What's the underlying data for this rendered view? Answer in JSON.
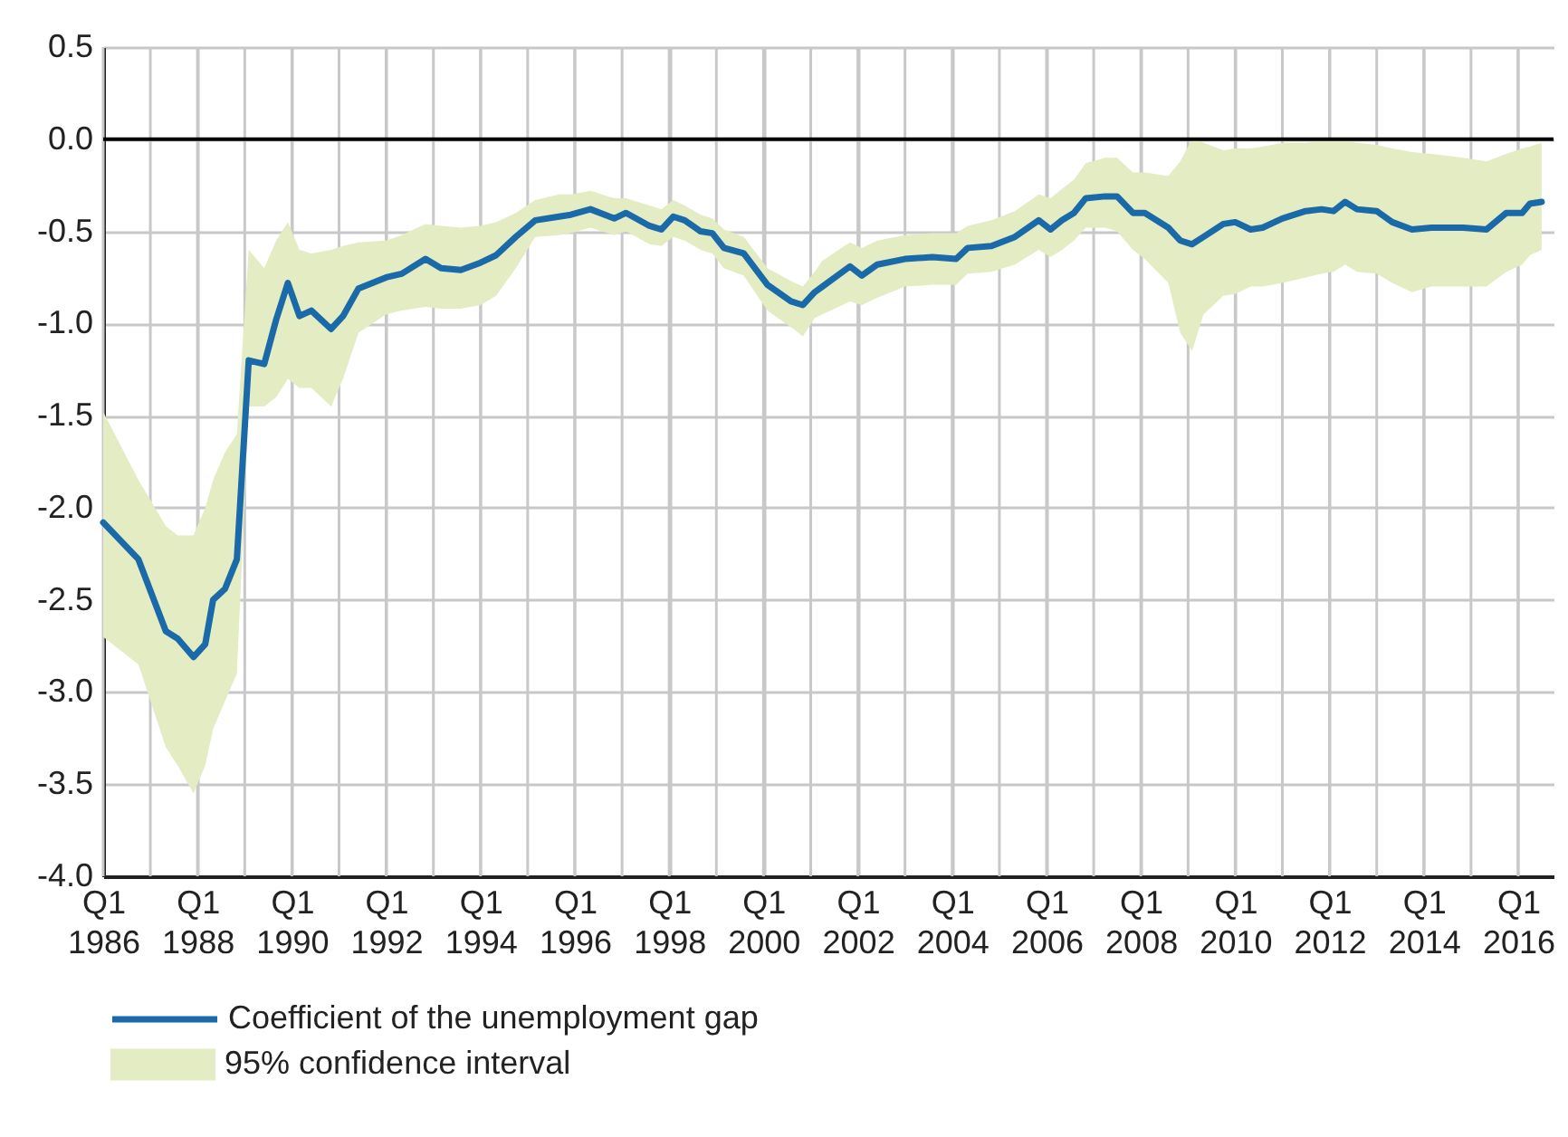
{
  "chart_data": {
    "type": "line",
    "x": [
      "1986-01",
      "1986-10",
      "1987-05",
      "1987-08",
      "1987-12",
      "1988-03",
      "1988-05",
      "1988-08",
      "1988-11",
      "1989-02",
      "1989-06",
      "1989-09",
      "1989-12",
      "1990-03",
      "1990-06",
      "1990-11",
      "1991-02",
      "1991-06",
      "1992-01",
      "1992-05",
      "1992-11",
      "1993-03",
      "1993-08",
      "1994-01",
      "1994-05",
      "1994-10",
      "1995-03",
      "1995-09",
      "1995-12",
      "1996-05",
      "1996-11",
      "1997-02",
      "1997-08",
      "1997-11",
      "1998-02",
      "1998-05",
      "1998-09",
      "1998-12",
      "1999-03",
      "1999-08",
      "2000-02",
      "2000-08",
      "2000-11",
      "2001-02",
      "2001-04",
      "2001-11",
      "2002-02",
      "2002-06",
      "2003-01",
      "2003-08",
      "2004-02",
      "2004-05",
      "2004-11",
      "2005-05",
      "2005-11",
      "2006-02",
      "2006-05",
      "2006-08",
      "2006-11",
      "2007-04",
      "2007-07",
      "2007-11",
      "2008-02",
      "2008-08",
      "2008-11",
      "2009-02",
      "2009-05",
      "2009-10",
      "2010-01",
      "2010-05",
      "2010-08",
      "2011-01",
      "2011-07",
      "2011-11",
      "2012-02",
      "2012-05",
      "2012-08",
      "2013-01",
      "2013-05",
      "2013-10",
      "2014-03",
      "2014-11",
      "2015-05",
      "2015-10",
      "2016-02",
      "2016-04",
      "2016-07"
    ],
    "series": [
      {
        "name": "Coefficient of the unemployment gap",
        "color": "#1a69a8",
        "lower": [
          -2.7,
          -2.85,
          -3.3,
          -3.4,
          -3.55,
          -3.4,
          -3.2,
          -3.05,
          -2.9,
          -1.45,
          -1.45,
          -1.4,
          -1.3,
          -1.35,
          -1.35,
          -1.45,
          -1.3,
          -1.05,
          -0.95,
          -0.93,
          -0.91,
          -0.92,
          -0.92,
          -0.9,
          -0.85,
          -0.7,
          -0.53,
          -0.52,
          -0.51,
          -0.48,
          -0.52,
          -0.5,
          -0.57,
          -0.58,
          -0.53,
          -0.55,
          -0.6,
          -0.62,
          -0.7,
          -0.74,
          -0.93,
          -1.02,
          -1.07,
          -0.97,
          -0.95,
          -0.88,
          -0.9,
          -0.86,
          -0.8,
          -0.79,
          -0.79,
          -0.73,
          -0.72,
          -0.68,
          -0.6,
          -0.64,
          -0.6,
          -0.55,
          -0.48,
          -0.48,
          -0.5,
          -0.6,
          -0.65,
          -0.78,
          -1.05,
          -1.15,
          -0.95,
          -0.85,
          -0.84,
          -0.8,
          -0.8,
          -0.78,
          -0.75,
          -0.73,
          -0.72,
          -0.68,
          -0.72,
          -0.73,
          -0.78,
          -0.83,
          -0.8,
          -0.8,
          -0.8,
          -0.72,
          -0.68,
          -0.63,
          -0.6
        ],
        "upper": [
          -1.48,
          -1.85,
          -2.1,
          -2.15,
          -2.15,
          -2.0,
          -1.85,
          -1.7,
          -1.6,
          -0.6,
          -0.7,
          -0.55,
          -0.45,
          -0.6,
          -0.62,
          -0.6,
          -0.58,
          -0.56,
          -0.55,
          -0.52,
          -0.46,
          -0.47,
          -0.48,
          -0.47,
          -0.45,
          -0.4,
          -0.33,
          -0.3,
          -0.3,
          -0.28,
          -0.32,
          -0.32,
          -0.36,
          -0.38,
          -0.33,
          -0.36,
          -0.41,
          -0.43,
          -0.49,
          -0.53,
          -0.7,
          -0.77,
          -0.8,
          -0.72,
          -0.66,
          -0.56,
          -0.59,
          -0.55,
          -0.52,
          -0.51,
          -0.51,
          -0.47,
          -0.44,
          -0.39,
          -0.3,
          -0.32,
          -0.27,
          -0.22,
          -0.13,
          -0.1,
          -0.1,
          -0.18,
          -0.18,
          -0.2,
          -0.12,
          0.0,
          -0.02,
          -0.06,
          -0.05,
          -0.05,
          -0.04,
          -0.02,
          -0.02,
          -0.01,
          -0.01,
          -0.01,
          -0.02,
          -0.03,
          -0.05,
          -0.07,
          -0.08,
          -0.1,
          -0.12,
          -0.08,
          -0.05,
          -0.04,
          -0.02
        ],
        "values": [
          -2.08,
          -2.28,
          -2.67,
          -2.71,
          -2.81,
          -2.74,
          -2.5,
          -2.44,
          -2.28,
          -1.2,
          -1.22,
          -0.98,
          -0.78,
          -0.96,
          -0.93,
          -1.03,
          -0.96,
          -0.81,
          -0.75,
          -0.73,
          -0.65,
          -0.7,
          -0.71,
          -0.67,
          -0.63,
          -0.53,
          -0.44,
          -0.42,
          -0.41,
          -0.38,
          -0.43,
          -0.4,
          -0.47,
          -0.49,
          -0.42,
          -0.44,
          -0.5,
          -0.51,
          -0.59,
          -0.62,
          -0.79,
          -0.88,
          -0.9,
          -0.83,
          -0.8,
          -0.69,
          -0.74,
          -0.68,
          -0.65,
          -0.64,
          -0.65,
          -0.59,
          -0.58,
          -0.53,
          -0.44,
          -0.49,
          -0.44,
          -0.4,
          -0.32,
          -0.31,
          -0.31,
          -0.4,
          -0.4,
          -0.48,
          -0.55,
          -0.57,
          -0.53,
          -0.46,
          -0.45,
          -0.49,
          -0.48,
          -0.43,
          -0.39,
          -0.38,
          -0.39,
          -0.34,
          -0.38,
          -0.39,
          -0.45,
          -0.49,
          -0.48,
          -0.48,
          -0.49,
          -0.4,
          -0.4,
          -0.35,
          -0.34
        ]
      }
    ],
    "xlim": [
      "1986-01",
      "2016-10"
    ],
    "xticks": [
      {
        "value": "1986",
        "label": "Q1\n1986"
      },
      {
        "value": "1987",
        "label": null
      },
      {
        "value": "1988",
        "label": "Q1\n1988"
      },
      {
        "value": "1989",
        "label": null
      },
      {
        "value": "1990",
        "label": "Q1\n1990"
      },
      {
        "value": "1991",
        "label": null
      },
      {
        "value": "1992",
        "label": "Q1\n1992"
      },
      {
        "value": "1993",
        "label": null
      },
      {
        "value": "1994",
        "label": "Q1\n1994"
      },
      {
        "value": "1995",
        "label": null
      },
      {
        "value": "1996",
        "label": "Q1\n1996"
      },
      {
        "value": "1997",
        "label": null
      },
      {
        "value": "1998",
        "label": "Q1\n1998"
      },
      {
        "value": "1999",
        "label": null
      },
      {
        "value": "2000",
        "label": "Q1\n2000"
      },
      {
        "value": "2001",
        "label": null
      },
      {
        "value": "2002",
        "label": "Q1\n2002"
      },
      {
        "value": "2003",
        "label": null
      },
      {
        "value": "2004",
        "label": "Q1\n2004"
      },
      {
        "value": "2005",
        "label": null
      },
      {
        "value": "2006",
        "label": "Q1\n2006"
      },
      {
        "value": "2007",
        "label": null
      },
      {
        "value": "2008",
        "label": "Q1\n2008"
      },
      {
        "value": "2009",
        "label": null
      },
      {
        "value": "2010",
        "label": "Q1\n2010"
      },
      {
        "value": "2011",
        "label": null
      },
      {
        "value": "2012",
        "label": "Q1\n2012"
      },
      {
        "value": "2013",
        "label": null
      },
      {
        "value": "2014",
        "label": "Q1\n2014"
      },
      {
        "value": "2015",
        "label": null
      },
      {
        "value": "2016",
        "label": "Q1\n2016"
      }
    ],
    "ylim": [
      -4.0,
      0.5
    ],
    "yticks": [
      0.5,
      {
        "value": 0,
        "label": "0.0"
      },
      -0.5,
      {
        "value": -1,
        "label": "-1.0"
      },
      -1.5,
      {
        "value": -2,
        "label": "-2.0"
      },
      -2.5,
      {
        "value": -3,
        "label": "-3.0"
      },
      -3.5,
      {
        "value": -4,
        "label": "-4.0"
      }
    ],
    "annotations": [
      "95% confidence interval"
    ],
    "ref_lines": [
      {
        "axis": "y",
        "value": 0,
        "color": "#000000"
      }
    ],
    "grid": true,
    "legend": "bottom left",
    "line_style": "solid"
  }
}
